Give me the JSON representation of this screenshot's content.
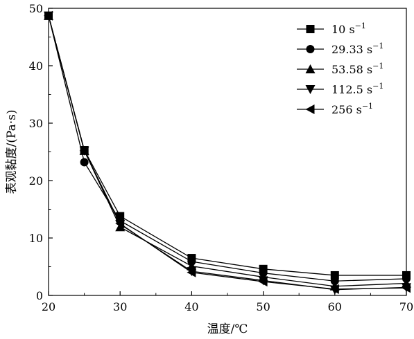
{
  "chart_data": {
    "type": "line",
    "title": "",
    "xlabel": "温度/℃",
    "ylabel": "表观黏度/(Pa·s)",
    "xlim": [
      20,
      70
    ],
    "ylim": [
      0,
      50
    ],
    "xticks": [
      20,
      30,
      40,
      50,
      60,
      70
    ],
    "yticks": [
      0,
      10,
      20,
      30,
      40,
      50
    ],
    "grid": false,
    "legend_position": "top-right",
    "series": [
      {
        "name": "10 s",
        "sup": "−1",
        "marker": "square",
        "x": [
          20,
          25,
          30,
          40,
          50,
          60,
          70
        ],
        "y": [
          48.7,
          25.3,
          13.8,
          6.5,
          4.6,
          3.5,
          3.5
        ]
      },
      {
        "name": "29.33 s",
        "sup": "−1",
        "marker": "circle",
        "x": [
          20,
          25,
          30,
          40,
          50,
          60,
          70
        ],
        "y": [
          48.7,
          23.2,
          13.0,
          5.9,
          3.9,
          2.5,
          2.9
        ]
      },
      {
        "name": "53.58 s",
        "sup": "−1",
        "marker": "triangle-up",
        "x": [
          20,
          25,
          30,
          40,
          50,
          60,
          70
        ],
        "y": [
          48.7,
          25.2,
          11.9,
          5.1,
          3.2,
          1.6,
          2.1
        ]
      },
      {
        "name": "112.5 s",
        "sup": "−1",
        "marker": "triangle-down",
        "x": [
          20,
          25,
          30,
          40,
          50,
          60,
          70
        ],
        "y": [
          48.7,
          25.2,
          12.4,
          4.2,
          2.6,
          1.0,
          1.4
        ]
      },
      {
        "name": "256 s",
        "sup": "−1",
        "marker": "triangle-left",
        "x": [
          20,
          25,
          30,
          40,
          50,
          60,
          70
        ],
        "y": [
          48.7,
          25.2,
          12.5,
          4.0,
          2.4,
          1.1,
          1.3
        ]
      }
    ]
  }
}
